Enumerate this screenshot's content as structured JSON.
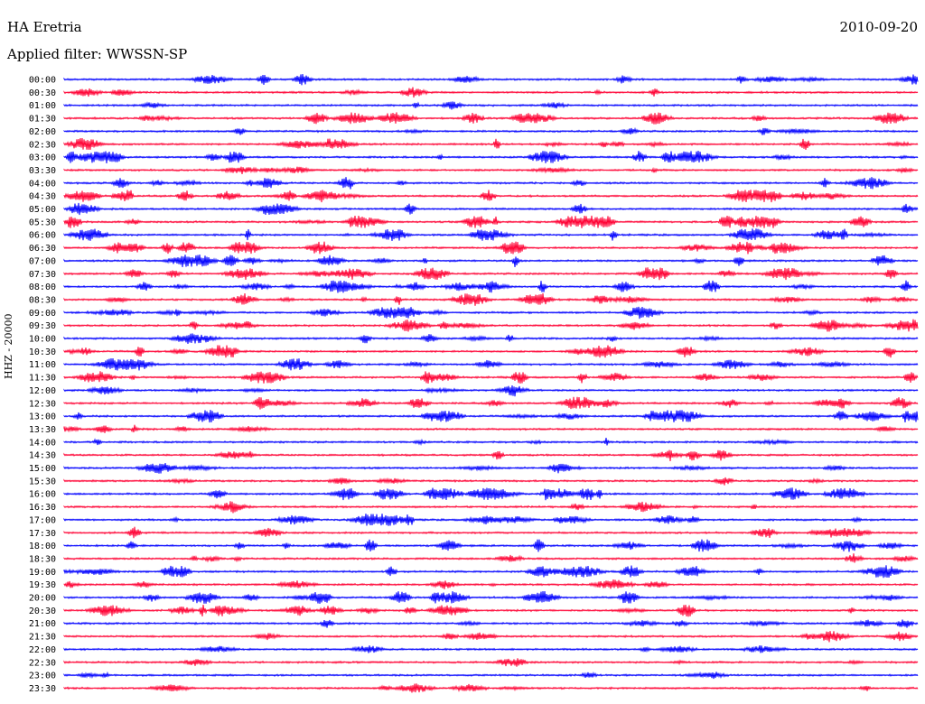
{
  "header": {
    "station": "HA Eretria",
    "date": "2010-09-20",
    "filter": "Applied filter: WWSSN-SP"
  },
  "colors": {
    "trace_a": "#0000ff",
    "trace_b": "#ff0033",
    "background": "#ffffff",
    "text": "#000000"
  },
  "chart_data": {
    "type": "line",
    "title": "HA Eretria",
    "subtitle": "Applied filter: WWSSN-SP",
    "date": "2010-09-20",
    "ylabel": "HHZ - 20000",
    "xlabel": "",
    "grid": false,
    "series_colors": [
      "#0000ff",
      "#ff0033"
    ],
    "rows": [
      {
        "label": "00:00",
        "activity": 0.35
      },
      {
        "label": "00:30",
        "activity": 0.15
      },
      {
        "label": "01:00",
        "activity": 0.1
      },
      {
        "label": "01:30",
        "activity": 0.45
      },
      {
        "label": "02:00",
        "activity": 0.1
      },
      {
        "label": "02:30",
        "activity": 0.55
      },
      {
        "label": "03:00",
        "activity": 0.7
      },
      {
        "label": "03:30",
        "activity": 0.2
      },
      {
        "label": "04:00",
        "activity": 0.5
      },
      {
        "label": "04:30",
        "activity": 0.75
      },
      {
        "label": "05:00",
        "activity": 0.25
      },
      {
        "label": "05:30",
        "activity": 0.8
      },
      {
        "label": "06:00",
        "activity": 0.6
      },
      {
        "label": "06:30",
        "activity": 0.8
      },
      {
        "label": "07:00",
        "activity": 0.55
      },
      {
        "label": "07:30",
        "activity": 0.6
      },
      {
        "label": "08:00",
        "activity": 0.7
      },
      {
        "label": "08:30",
        "activity": 0.6
      },
      {
        "label": "09:00",
        "activity": 0.5
      },
      {
        "label": "09:30",
        "activity": 0.55
      },
      {
        "label": "10:00",
        "activity": 0.3
      },
      {
        "label": "10:30",
        "activity": 0.5
      },
      {
        "label": "11:00",
        "activity": 0.45
      },
      {
        "label": "11:30",
        "activity": 0.6
      },
      {
        "label": "12:00",
        "activity": 0.2
      },
      {
        "label": "12:30",
        "activity": 0.5
      },
      {
        "label": "13:00",
        "activity": 0.6
      },
      {
        "label": "13:30",
        "activity": 0.2
      },
      {
        "label": "14:00",
        "activity": 0.1
      },
      {
        "label": "14:30",
        "activity": 0.3
      },
      {
        "label": "15:00",
        "activity": 0.3
      },
      {
        "label": "15:30",
        "activity": 0.1
      },
      {
        "label": "16:00",
        "activity": 0.7
      },
      {
        "label": "16:30",
        "activity": 0.15
      },
      {
        "label": "17:00",
        "activity": 0.5
      },
      {
        "label": "17:30",
        "activity": 0.3
      },
      {
        "label": "18:00",
        "activity": 0.6
      },
      {
        "label": "18:30",
        "activity": 0.15
      },
      {
        "label": "19:00",
        "activity": 0.6
      },
      {
        "label": "19:30",
        "activity": 0.2
      },
      {
        "label": "20:00",
        "activity": 0.6
      },
      {
        "label": "20:30",
        "activity": 0.6
      },
      {
        "label": "21:00",
        "activity": 0.2
      },
      {
        "label": "21:30",
        "activity": 0.2
      },
      {
        "label": "22:00",
        "activity": 0.15
      },
      {
        "label": "22:30",
        "activity": 0.1
      },
      {
        "label": "23:00",
        "activity": 0.1
      },
      {
        "label": "23:30",
        "activity": 0.15
      }
    ]
  }
}
